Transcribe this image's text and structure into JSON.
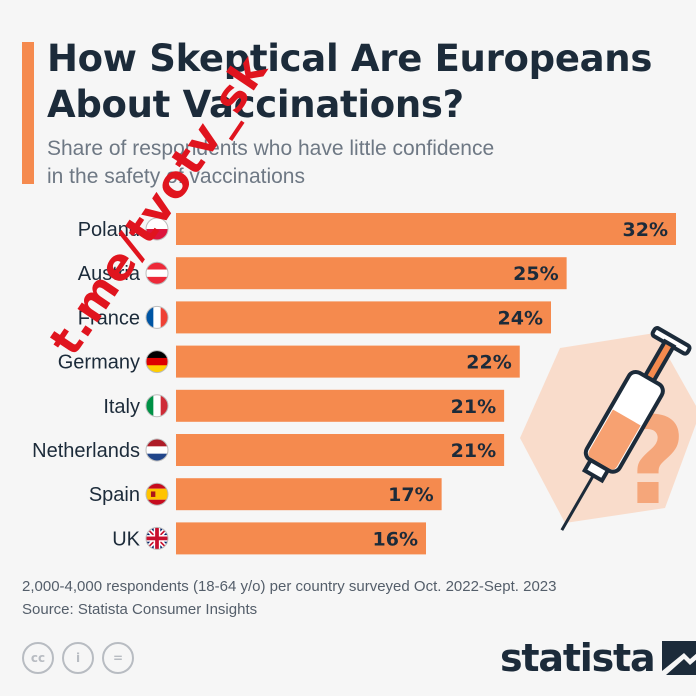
{
  "title_line1": "How Skeptical Are Europeans",
  "title_line2": "About Vaccinations?",
  "subtitle_line1": "Share of respondents who have little confidence",
  "subtitle_line2": "in the safety of vaccinations",
  "colors": {
    "accent": "#f58a4e",
    "bar": "#f58a4e",
    "title": "#1c2b3a",
    "watermark": "#e0141e"
  },
  "chart_data": {
    "type": "bar",
    "orientation": "horizontal",
    "categories": [
      "Poland",
      "Austria",
      "France",
      "Germany",
      "Italy",
      "Netherlands",
      "Spain",
      "UK"
    ],
    "values": [
      32,
      25,
      24,
      22,
      21,
      21,
      17,
      16
    ],
    "labels": [
      "32%",
      "25%",
      "24%",
      "22%",
      "21%",
      "21%",
      "17%",
      "16%"
    ],
    "unit": "%",
    "xlim": [
      0,
      32
    ],
    "grid": false,
    "legend": "none"
  },
  "flags": [
    "poland-flag-icon",
    "austria-flag-icon",
    "france-flag-icon",
    "germany-flag-icon",
    "italy-flag-icon",
    "netherlands-flag-icon",
    "spain-flag-icon",
    "uk-flag-icon"
  ],
  "footnote": {
    "line1": "2,000-4,000 respondents (18-64 y/o) per country surveyed Oct. 2022-Sept. 2023",
    "line2": "Source: Statista Consumer Insights"
  },
  "license_icons": {
    "cc": "cc",
    "by": "i",
    "nd": "="
  },
  "brand": "statista",
  "watermark": "t.me/tvotv_sk"
}
